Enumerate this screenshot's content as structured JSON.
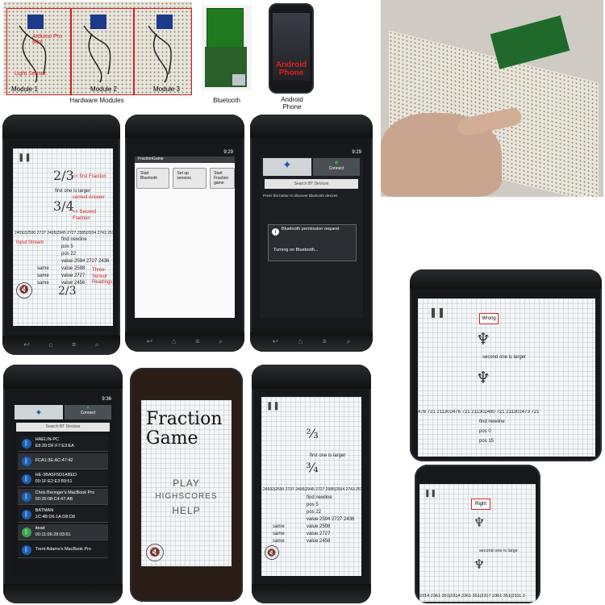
{
  "hardware_panel": {
    "caption": "Hardware Modules",
    "module_labels": [
      "Module 1",
      "Module 2",
      "Module 3"
    ],
    "annotations": [
      "Arduino Pro Mini",
      "Light Sensor"
    ]
  },
  "bluetooth_panel": {
    "caption": "Bluetooth"
  },
  "android_panel": {
    "caption": "Android Phone",
    "overlay_text": "Android Phone"
  },
  "phone1": {
    "fraction_top": "2/3",
    "fraction_bottom": "3/4",
    "annotation_first": "<< first Fraction",
    "annotation_correct": "correct Answer",
    "annotation_second": "<< Second Fraction",
    "first_is_larger": "first one is larger",
    "input_stream_label": "Input Stream",
    "stream": "24592|2590 2737 2495|2945 2727 2585|2934 2743 251",
    "log_lines": [
      "find newline",
      "pos 5",
      "pos 22",
      "value 2594 2727 2436"
    ],
    "sensor_rows": [
      {
        "tag": "same",
        "value": "value 2598"
      },
      {
        "tag": "same",
        "value": "value 2727"
      },
      {
        "tag": "same",
        "value": "value 2456"
      }
    ],
    "sensor_label": "Three Sensor Readings",
    "bottom_fraction": "2/3"
  },
  "phone2": {
    "status_time": "9:29",
    "app_title": "FractionGame",
    "buttons": [
      "Start Bluetooth",
      "Set up sensors",
      "Start Fraction game"
    ]
  },
  "phone3": {
    "status_time": "9:29",
    "tab_connect": "Connect",
    "search_label": "Search BT Devices",
    "hint": "Press the button to discover Bluetooth devices",
    "dialog_title": "Bluetooth permission request",
    "dialog_body": "Turning on Bluetooth..."
  },
  "phone4": {
    "status_time": "9:36",
    "tab_connect": "Connect",
    "search_label": "Search BT Devices",
    "devices": [
      {
        "name": "HAELIN-PC",
        "addr": "E8:39:DF:F7:E3:EA"
      },
      {
        "name": "",
        "addr": "FCA1:3E:AC:47:42"
      },
      {
        "name": "HE-3BA5F5D1ABED",
        "addr": "00:1F:E2:E3:89:51"
      },
      {
        "name": "Chris Beringer's MacBook Pro",
        "addr": "00:26:08:C4:47:AB"
      },
      {
        "name": "BATMAN",
        "addr": "1C:4B:D6:1A:D8:D8"
      },
      {
        "name": "itead",
        "addr": "00:11:06:28:03:61"
      },
      {
        "name": "Trent Adams's MacBook Pro",
        "addr": ""
      }
    ]
  },
  "phone5": {
    "title": "Fraction Game",
    "menu": [
      "PLAY",
      "HIGHSCORES",
      "HELP"
    ]
  },
  "phone6": {
    "first_is_larger": "first one is larger",
    "stream": "24592|2590 2737 2495|2945 2727 2585|2934 2743 251",
    "log_lines": [
      "find newline",
      "pos 5",
      "pos 22",
      "value 2594 2727 2436"
    ],
    "sensor_rows": [
      {
        "tag": "same",
        "value": "value 2598"
      },
      {
        "tag": "same",
        "value": "value 2727"
      },
      {
        "tag": "same",
        "value": "value 2456"
      }
    ]
  },
  "phone7": {
    "badge": "Wrong",
    "message": "second one is larger",
    "stream": "476 721 211302476 721 211302480 721 211302473 721",
    "log_lines": [
      "find newline",
      "pos 0",
      "pos 15"
    ]
  },
  "phone8": {
    "badge": "Right",
    "message": "second one is large",
    "stream": "2314 2361 351|2314 2361 351|2317 2361 351|2311 2"
  }
}
